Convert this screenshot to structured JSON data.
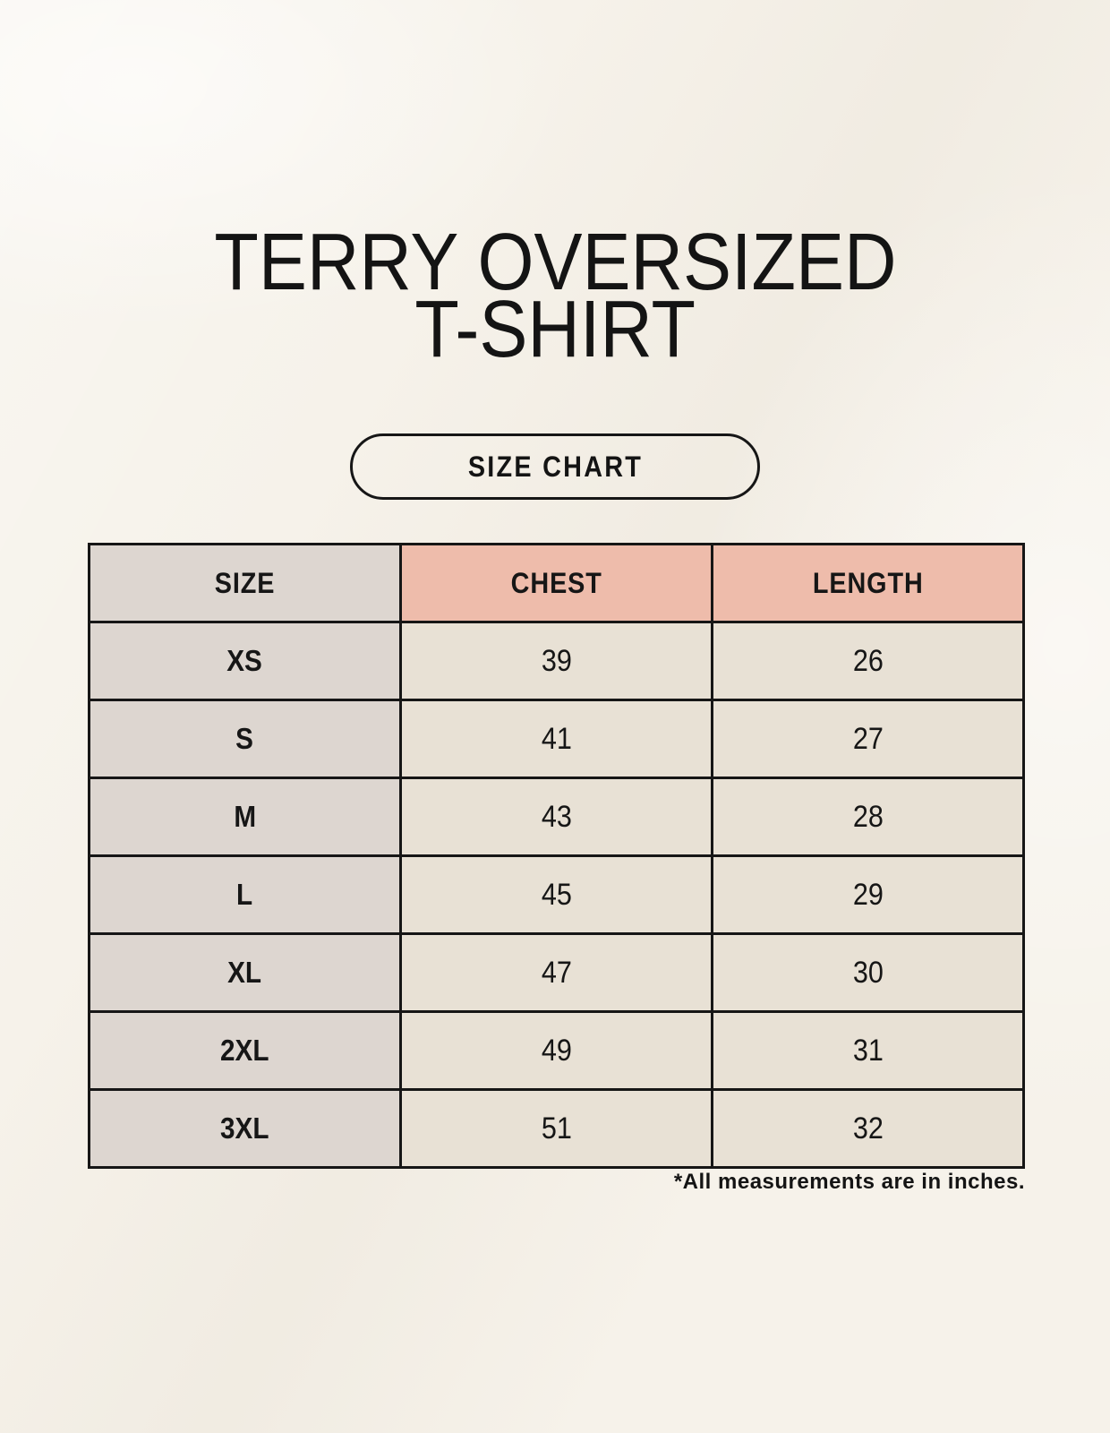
{
  "title": {
    "line1": "TERRY OVERSIZED",
    "line2": "T-SHIRT"
  },
  "badge": {
    "label": "SIZE CHART"
  },
  "size_table": {
    "columns": [
      "SIZE",
      "CHEST",
      "LENGTH"
    ],
    "rows": [
      {
        "size": "XS",
        "chest": "39",
        "length": "26"
      },
      {
        "size": "S",
        "chest": "41",
        "length": "27"
      },
      {
        "size": "M",
        "chest": "43",
        "length": "28"
      },
      {
        "size": "L",
        "chest": "45",
        "length": "29"
      },
      {
        "size": "XL",
        "chest": "47",
        "length": "30"
      },
      {
        "size": "2XL",
        "chest": "49",
        "length": "31"
      },
      {
        "size": "3XL",
        "chest": "51",
        "length": "32"
      }
    ]
  },
  "footnote": "*All measurements are in inches.",
  "colors": {
    "background": "#f6f2ea",
    "accent_salmon": "#eebcab",
    "neutral_taupe": "#ddd6d0",
    "cell_cream": "#e8e1d5",
    "ink": "#161616"
  },
  "chart_data": {
    "type": "table",
    "title": "TERRY OVERSIZED T-SHIRT",
    "columns": [
      "SIZE",
      "CHEST",
      "LENGTH"
    ],
    "units": "inches",
    "rows": [
      [
        "XS",
        39,
        26
      ],
      [
        "S",
        41,
        27
      ],
      [
        "M",
        43,
        28
      ],
      [
        "L",
        45,
        29
      ],
      [
        "XL",
        47,
        30
      ],
      [
        "2XL",
        49,
        31
      ],
      [
        "3XL",
        51,
        32
      ]
    ]
  }
}
